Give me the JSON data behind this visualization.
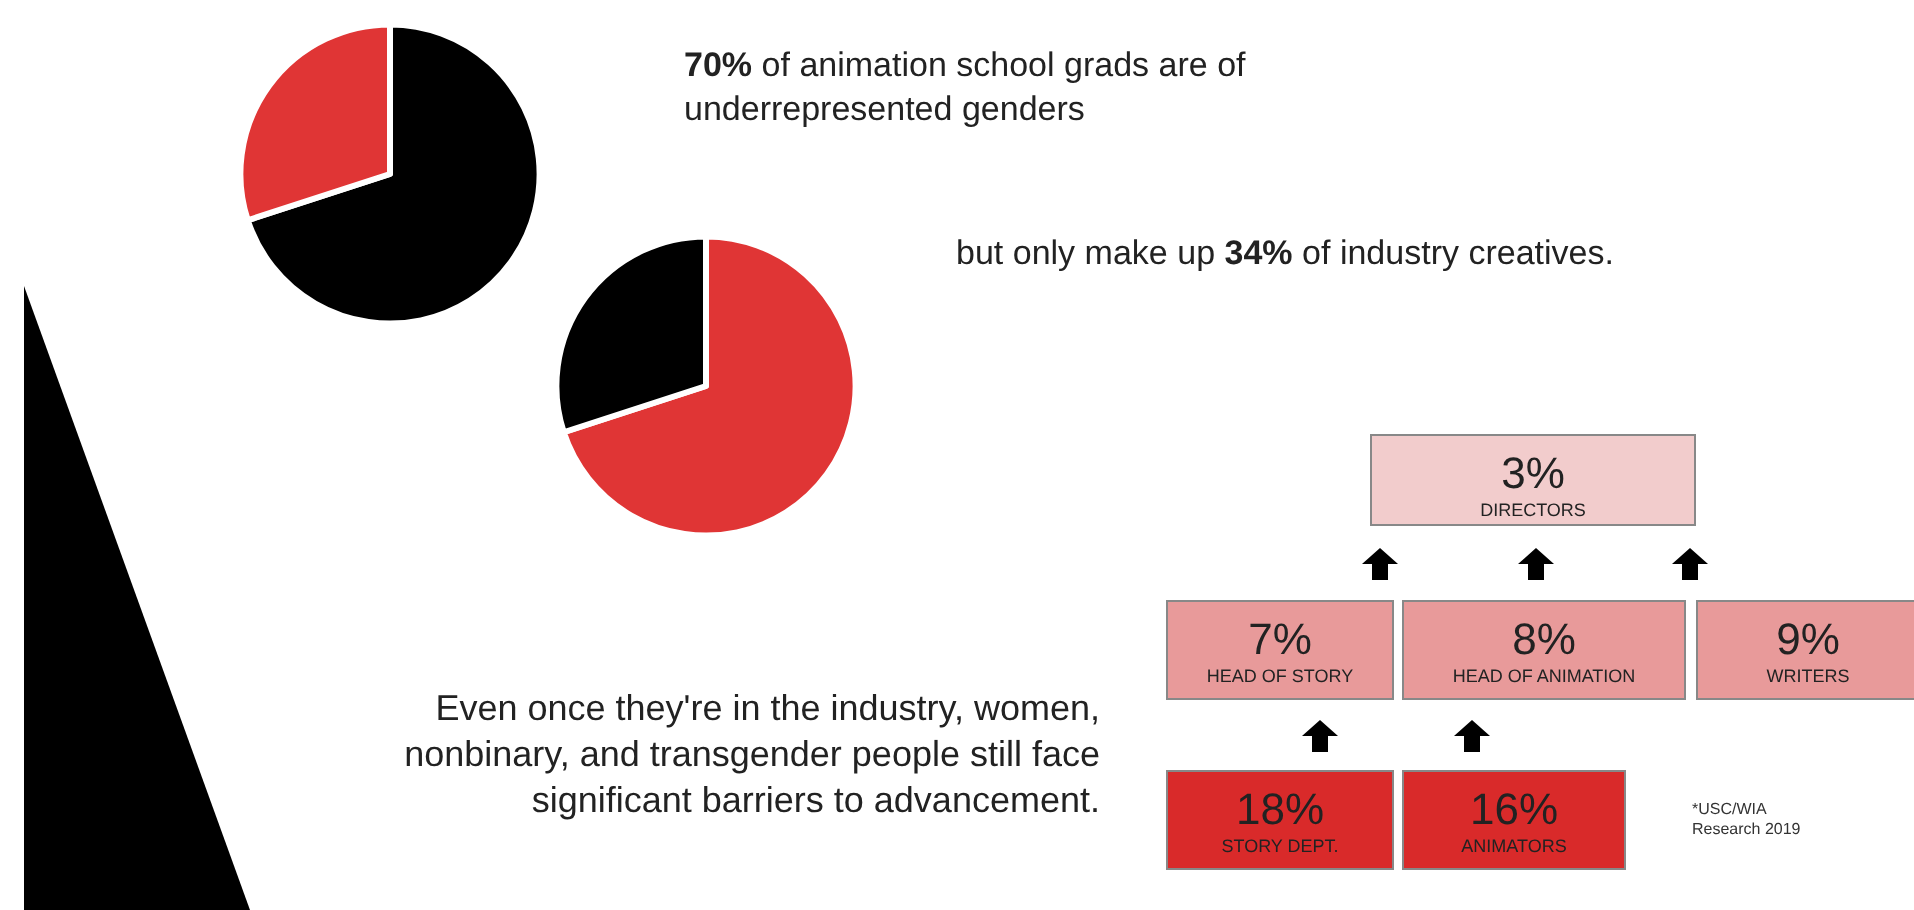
{
  "chart_data": [
    {
      "type": "pie",
      "title": "70% of animation school grads are of underrepresented genders",
      "categories": [
        null,
        null
      ],
      "values": [
        70,
        30
      ],
      "colors": [
        "#000000",
        "#e03535"
      ]
    },
    {
      "type": "pie",
      "title": "but only make up 34% of industry creatives.",
      "categories": [
        null,
        null
      ],
      "values": [
        70,
        30
      ],
      "colors": [
        "#e03535",
        "#000000"
      ]
    },
    {
      "type": "other",
      "title": "Even once they're in the industry, women, nonbinary, and transgender people still face significant barriers to advancement.",
      "categories": [
        "DIRECTORS",
        "HEAD OF STORY",
        "HEAD OF ANIMATION",
        "WRITERS",
        "STORY DEPT.",
        "ANIMATORS"
      ],
      "values": [
        3,
        7,
        8,
        9,
        18,
        16
      ],
      "value_labels": [
        "3%",
        "7%",
        "8%",
        "9%",
        "18%",
        "16%"
      ],
      "colors": [
        "#f2cccc",
        "#e89a9a",
        "#e89a9a",
        "#e89a9a",
        "#d92a2a",
        "#d92a2a"
      ],
      "annotations": [
        "*USC/WIA Research 2019"
      ]
    }
  ]
}
